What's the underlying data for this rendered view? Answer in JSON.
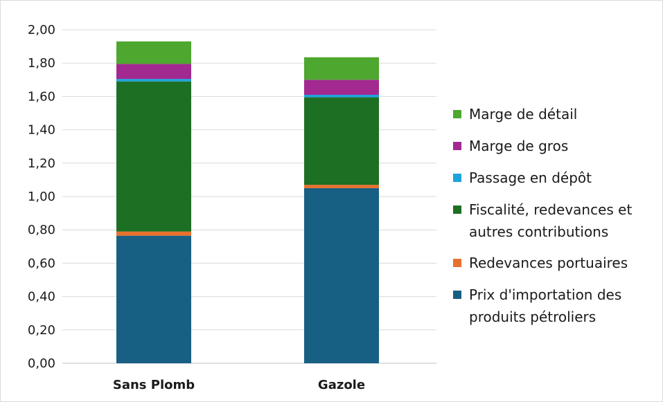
{
  "chart_data": {
    "type": "bar",
    "stacked": true,
    "title": "",
    "xlabel": "",
    "ylabel": "",
    "ylim": [
      0,
      2.0
    ],
    "yticks": [
      "0,00",
      "0,20",
      "0,40",
      "0,60",
      "0,80",
      "1,00",
      "1,20",
      "1,40",
      "1,60",
      "1,80",
      "2,00"
    ],
    "categories": [
      "Sans Plomb",
      "Gazole"
    ],
    "grid": true,
    "legend_position": "right",
    "series": [
      {
        "name": "Prix d'importation des produits pétroliers",
        "legend_lines": [
          "Prix d'importation des",
          "produits pétroliers"
        ],
        "color": "#185f84",
        "values": [
          0.765,
          1.05
        ]
      },
      {
        "name": "Redevances portuaires",
        "legend_lines": [
          "Redevances portuaires"
        ],
        "color": "#e8712e",
        "values": [
          0.025,
          0.02
        ]
      },
      {
        "name": "Fiscalité, redevances et autres contributions",
        "legend_lines": [
          "Fiscalité, redevances et",
          "autres contributions"
        ],
        "color": "#1d6f24",
        "values": [
          0.9,
          0.525
        ]
      },
      {
        "name": "Passage en dépôt",
        "legend_lines": [
          "Passage en dépôt"
        ],
        "color": "#1ea3dc",
        "values": [
          0.015,
          0.015
        ]
      },
      {
        "name": "Marge de gros",
        "legend_lines": [
          "Marge de gros"
        ],
        "color": "#a2298f",
        "values": [
          0.09,
          0.09
        ]
      },
      {
        "name": "Marge de détail",
        "legend_lines": [
          "Marge de détail"
        ],
        "color": "#4ea72e",
        "values": [
          0.135,
          0.135
        ]
      }
    ]
  }
}
